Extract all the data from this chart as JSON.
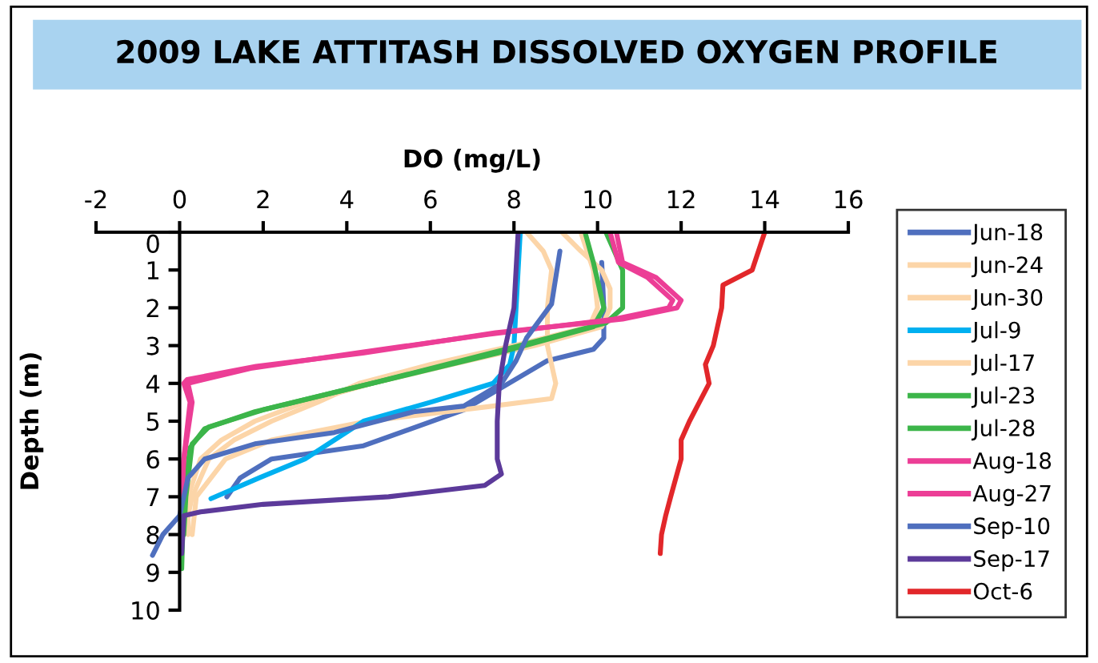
{
  "chart_data": {
    "type": "line",
    "title": "2009 LAKE ATTITASH DISSOLVED OXYGEN PROFILE",
    "xlabel": "DO (mg/L)",
    "ylabel": "Depth (m)",
    "xlim": [
      -2,
      16
    ],
    "xticks": [
      -2,
      0,
      2,
      4,
      6,
      8,
      10,
      12,
      14,
      16
    ],
    "ylim": [
      10,
      0
    ],
    "yticks": [
      0,
      1,
      2,
      3,
      4,
      5,
      6,
      7,
      8,
      9,
      10
    ],
    "grid": false,
    "legend": "right",
    "marker": "none",
    "line_style": "solid",
    "series": [
      {
        "name": "Jun-18",
        "color": "#4f6fbe",
        "x": [
          10.1,
          10.15,
          10.15,
          9.9,
          8.8,
          6.8,
          4.4,
          2.2,
          1.45,
          1.13
        ],
        "values": [
          0.8,
          2.0,
          2.8,
          3.1,
          3.4,
          4.7,
          5.65,
          6.0,
          6.5,
          7.0
        ]
      },
      {
        "name": "Jun-24",
        "color": "#fcd5a8",
        "x": [
          9.15,
          9.6,
          10.1,
          10.3,
          10.3,
          10.1,
          8.5,
          6.5,
          4.6,
          3.0,
          1.8,
          1.0,
          0.5,
          0.2,
          0.2
        ],
        "values": [
          0,
          0.5,
          1,
          1.5,
          2,
          2.5,
          3,
          3.5,
          4,
          4.5,
          5,
          5.5,
          6,
          7,
          8
        ]
      },
      {
        "name": "Jun-30",
        "color": "#fcd5a8",
        "x": [
          8.3,
          8.7,
          8.9,
          8.8,
          8.8,
          9.0,
          8.9,
          7.5,
          4.5,
          2.2,
          1.1,
          0.4,
          0.3
        ],
        "values": [
          0,
          0.5,
          1,
          2,
          3,
          4,
          4.4,
          4.6,
          5,
          5.5,
          6,
          7,
          8
        ]
      },
      {
        "name": "Jul-9",
        "color": "#00b0f0",
        "x": [
          8.15,
          8.1,
          8.05,
          8.0,
          7.9,
          7.5,
          6.0,
          4.4,
          3.7,
          3.0,
          1.9,
          0.75
        ],
        "values": [
          0,
          1,
          2,
          3,
          3.5,
          4,
          4.5,
          5,
          5.5,
          6,
          6.5,
          7.05
        ]
      },
      {
        "name": "Jul-17",
        "color": "#fcd5a8",
        "x": [
          9.6,
          9.9,
          10.0,
          9.8,
          8.0,
          6.0,
          4.3,
          3.3,
          2.2,
          1.3,
          0.7,
          0.3,
          0.2
        ],
        "values": [
          0,
          1,
          2,
          2.5,
          3,
          3.5,
          4,
          4.5,
          5,
          5.5,
          6,
          7,
          7.5
        ]
      },
      {
        "name": "Jul-23",
        "color": "#3cb54a",
        "x": [
          9.7,
          9.9,
          10.15,
          9.9,
          7.6,
          4.4,
          1.8,
          0.6,
          0.25,
          0.1,
          0.05
        ],
        "values": [
          0,
          0.8,
          2.0,
          2.5,
          3.2,
          4.05,
          4.75,
          5.2,
          5.7,
          7,
          8.9
        ]
      },
      {
        "name": "Jul-28",
        "color": "#3cb54a",
        "x": [
          10.2,
          10.6,
          10.6,
          10.2,
          7.8,
          4.6,
          2.0,
          0.7,
          0.3,
          0.15,
          0.1
        ],
        "values": [
          0,
          1,
          2,
          2.4,
          3.1,
          4.0,
          4.7,
          5.15,
          5.6,
          7,
          8
        ]
      },
      {
        "name": "Aug-18",
        "color": "#ec3e96",
        "x": [
          10.3,
          10.5,
          11.2,
          11.8,
          11.7,
          10.4,
          7.4,
          4.2,
          1.7,
          0.2,
          0.3,
          0.1,
          0.05
        ],
        "values": [
          0,
          0.8,
          1.2,
          1.8,
          2.0,
          2.3,
          2.7,
          3.2,
          3.6,
          4.0,
          4.5,
          6,
          7
        ]
      },
      {
        "name": "Aug-27",
        "color": "#ec3e96",
        "x": [
          10.45,
          10.6,
          11.4,
          12.0,
          11.9,
          10.6,
          7.56,
          4.38,
          1.83,
          0.18,
          0.1,
          0.25,
          0.1,
          0.05
        ],
        "values": [
          0,
          0.8,
          1.2,
          1.8,
          2.0,
          2.3,
          2.66,
          3.2,
          3.55,
          3.9,
          4.0,
          4.5,
          6,
          7
        ]
      },
      {
        "name": "Sep-10",
        "color": "#4f6fbe",
        "x": [
          9.1,
          8.9,
          8.3,
          8.05,
          7.7,
          6.8,
          5.6,
          3.7,
          1.8,
          0.6,
          0.2,
          0.0,
          -0.4,
          -0.65
        ],
        "values": [
          0.5,
          1.9,
          2.8,
          3.4,
          4.0,
          4.6,
          4.75,
          5.3,
          5.6,
          6.0,
          6.5,
          7.5,
          8.0,
          8.55
        ]
      },
      {
        "name": "Sep-17",
        "color": "#5c3a9a",
        "x": [
          8.1,
          8.0,
          7.8,
          7.65,
          7.6,
          7.6,
          7.7,
          7.3,
          5.0,
          2.0,
          0.5,
          0.1,
          0.05
        ],
        "values": [
          0,
          2,
          3,
          4,
          5,
          6,
          6.4,
          6.7,
          7.0,
          7.2,
          7.4,
          7.5,
          8.5
        ]
      },
      {
        "name": "Oct-6",
        "color": "#e2272a",
        "x": [
          14.0,
          13.7,
          13.0,
          12.97,
          12.77,
          12.58,
          12.67,
          12.2,
          12.0,
          12.0,
          11.75,
          11.63,
          11.53,
          11.5
        ],
        "values": [
          0,
          1.0,
          1.4,
          2,
          3,
          3.5,
          4,
          5,
          5.5,
          6,
          7,
          7.5,
          8,
          8.5
        ]
      }
    ]
  }
}
